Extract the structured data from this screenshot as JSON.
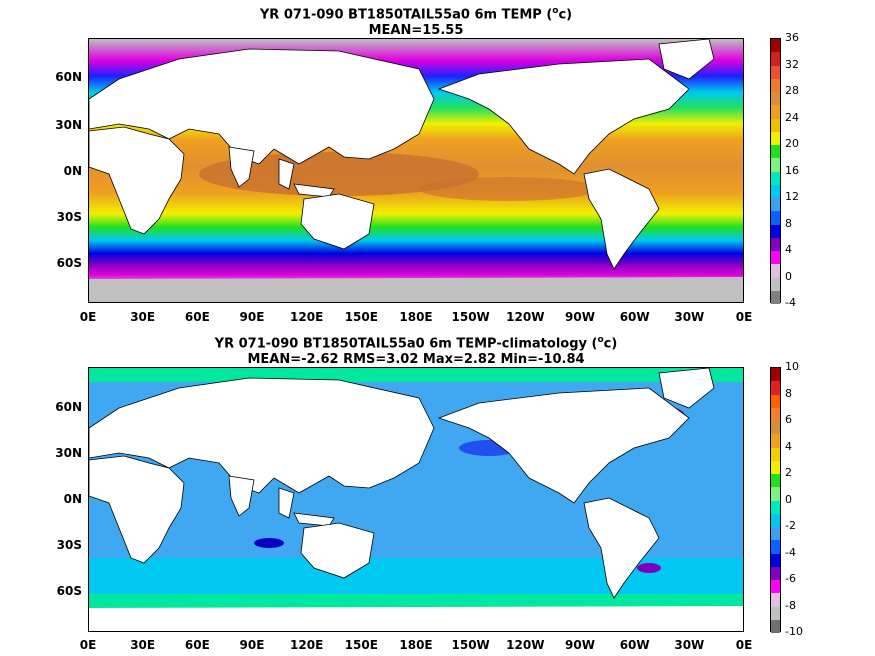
{
  "panel1": {
    "title_line1": "YR 071-090 BT1850TAIL55a0 6m TEMP (",
    "title_sup": "o",
    "title_line1_end": "c)",
    "title_line2": "MEAN=15.55",
    "y_ticks": [
      "60N",
      "30N",
      "0N",
      "30S",
      "60S"
    ],
    "x_ticks": [
      "0E",
      "30E",
      "60E",
      "90E",
      "120E",
      "150E",
      "180E",
      "150W",
      "120W",
      "90W",
      "60W",
      "30W",
      "0E"
    ],
    "colorbar": {
      "labels": [
        "36",
        "32",
        "28",
        "24",
        "20",
        "16",
        "12",
        "8",
        "4",
        "0",
        "-4"
      ],
      "colors": [
        "#a00000",
        "#d02020",
        "#e85030",
        "#f07830",
        "#d89040",
        "#f0a020",
        "#f0c000",
        "#f0f000",
        "#20e020",
        "#80f080",
        "#00e8c0",
        "#00c8f0",
        "#40a0f0",
        "#1060ff",
        "#0000e0",
        "#8000c0",
        "#ff00ff",
        "#e0c0e0",
        "#c0c0c0",
        "#808080"
      ]
    }
  },
  "panel2": {
    "title_line1": "YR 071-090 BT1850TAIL55a0 6m TEMP-climatology (",
    "title_sup": "o",
    "title_line1_end": "c)",
    "title_line2": "MEAN=-2.62   RMS=3.02   Max=2.82   Min=-10.84",
    "y_ticks": [
      "60N",
      "30N",
      "0N",
      "30S",
      "60S"
    ],
    "x_ticks": [
      "0E",
      "30E",
      "60E",
      "90E",
      "120E",
      "150E",
      "180E",
      "150W",
      "120W",
      "90W",
      "60W",
      "30W",
      "0E"
    ],
    "colorbar": {
      "labels": [
        "10",
        "8",
        "6",
        "4",
        "2",
        "0",
        "-2",
        "-4",
        "-6",
        "-8",
        "-10"
      ],
      "colors": [
        "#a00000",
        "#e02020",
        "#ff6000",
        "#f08030",
        "#d09040",
        "#f0a020",
        "#f0d000",
        "#f0f000",
        "#20e020",
        "#80f080",
        "#00e8c0",
        "#00c8f0",
        "#40a0f0",
        "#1060ff",
        "#0000e0",
        "#8000c0",
        "#ff00ff",
        "#e0c0e0",
        "#c0c0c0",
        "#707070"
      ]
    }
  }
}
